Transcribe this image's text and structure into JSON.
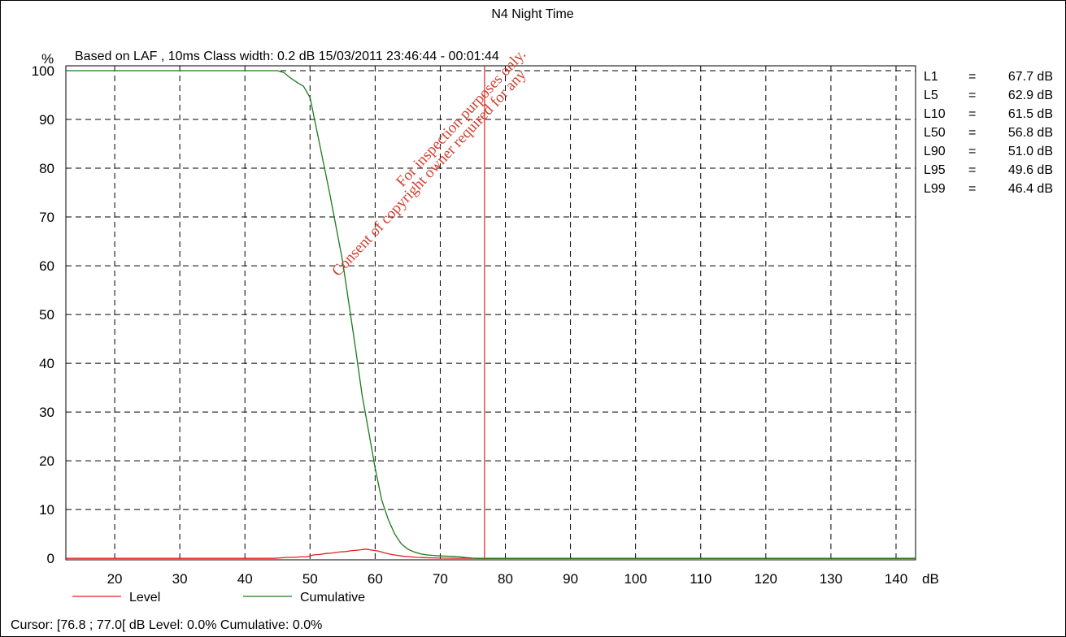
{
  "chart_data": {
    "type": "line",
    "title": "N4 Night Time",
    "subtitle": "Based on LAF , 10ms   Class width: 0.2 dB  15/03/2011 23:46:44 - 00:01:44",
    "ylabel": "%",
    "xlabel": "dB",
    "xlim": [
      12.5,
      143
    ],
    "ylim": [
      -0.3,
      101
    ],
    "x_ticks": [
      20,
      30,
      40,
      50,
      60,
      70,
      80,
      90,
      100,
      110,
      120,
      130,
      140
    ],
    "y_ticks": [
      0,
      10,
      20,
      30,
      40,
      50,
      60,
      70,
      80,
      90,
      100
    ],
    "grid": true,
    "legend_position": "bottom",
    "cursor_x": 76.8,
    "series": [
      {
        "name": "Level",
        "color": "#e02020",
        "x": [
          12.5,
          44.5,
          45.5,
          46.5,
          47.5,
          48.5,
          49.5,
          50.5,
          51.5,
          52.5,
          53.5,
          54.5,
          55.5,
          56.5,
          57.5,
          58.5,
          59.5,
          60.5,
          61.5,
          62.5,
          63.5,
          64.5,
          65.5,
          66.5,
          67.5,
          68.5,
          70,
          72,
          74,
          76,
          143
        ],
        "y": [
          0,
          0,
          0.1,
          0.2,
          0.2,
          0.3,
          0.3,
          0.7,
          0.8,
          1.0,
          1.1,
          1.3,
          1.4,
          1.6,
          1.7,
          1.9,
          1.7,
          1.5,
          1.1,
          0.8,
          0.6,
          0.4,
          0.3,
          0.2,
          0.15,
          0.1,
          0.05,
          0.02,
          0.01,
          0,
          0
        ]
      },
      {
        "name": "Cumulative",
        "color": "#1a7a1a",
        "x": [
          12.5,
          45,
          46,
          47,
          48,
          49,
          50,
          51,
          52,
          53,
          54,
          55,
          56,
          57,
          58,
          59,
          60,
          61,
          62,
          63,
          64,
          65,
          66,
          67,
          68,
          69,
          70,
          71,
          72,
          73,
          74,
          75,
          76,
          143
        ],
        "y": [
          100,
          100,
          99.6,
          98.5,
          97.6,
          96.8,
          94.5,
          88.0,
          81.5,
          75.0,
          68.0,
          61.0,
          52.0,
          43.0,
          33.5,
          26.0,
          18.5,
          12.0,
          8.0,
          5.0,
          3.0,
          1.9,
          1.3,
          0.9,
          0.7,
          0.6,
          0.5,
          0.45,
          0.4,
          0.3,
          0.15,
          0.05,
          0,
          0
        ]
      }
    ],
    "statistics": [
      {
        "label": "L1",
        "eq": "=",
        "value": "67.7 dB"
      },
      {
        "label": "L5",
        "eq": "=",
        "value": "62.9 dB"
      },
      {
        "label": "L10",
        "eq": "=",
        "value": "61.5 dB"
      },
      {
        "label": "L50",
        "eq": "=",
        "value": "56.8 dB"
      },
      {
        "label": "L90",
        "eq": "=",
        "value": "51.0 dB"
      },
      {
        "label": "L95",
        "eq": "=",
        "value": "49.6 dB"
      },
      {
        "label": "L99",
        "eq": "=",
        "value": "46.4 dB"
      }
    ],
    "cursor_text": "Cursor: [76.8 ; 77.0[ dB  Level: 0.0%  Cumulative: 0.0%"
  },
  "watermark": {
    "line1": "For inspection purposes only.",
    "line2": "Consent of copyright owner required for any",
    "color": "#d04030"
  }
}
